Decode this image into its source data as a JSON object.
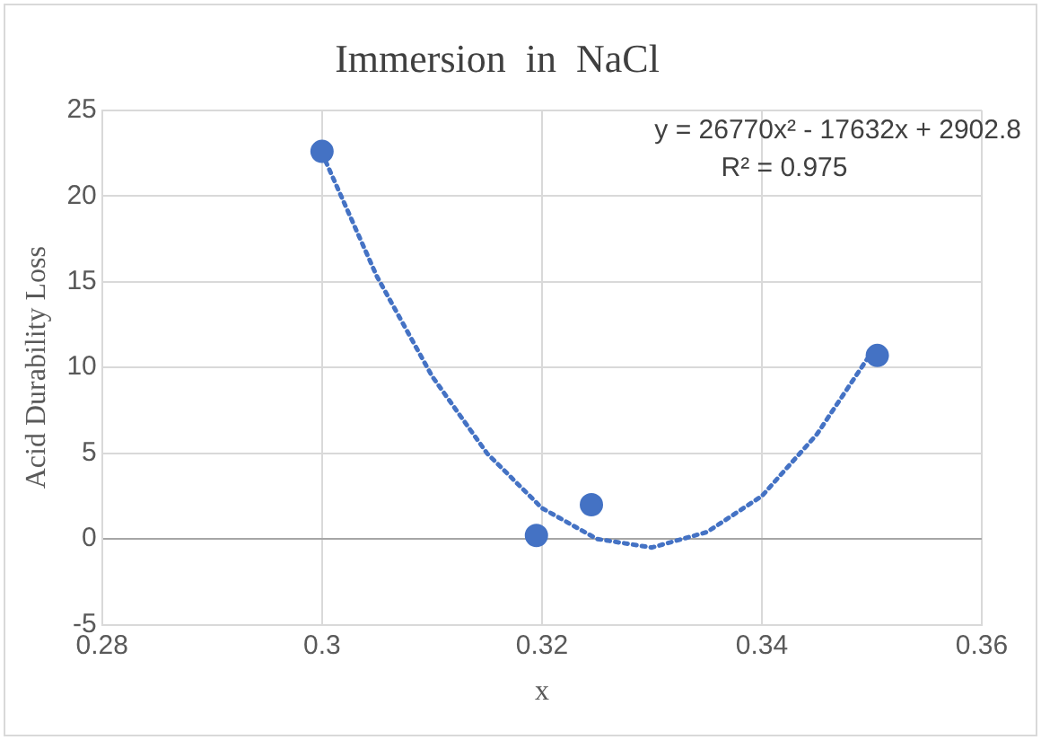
{
  "chart_data": {
    "type": "scatter",
    "title": "Immersion  in  NaCl",
    "xlabel": "x",
    "ylabel": "Acid Durability Loss",
    "annotations": [
      "y = 26770x² - 17632x + 2902.8",
      "R² = 0.975"
    ],
    "xlim": [
      0.28,
      0.36
    ],
    "xticks": [
      0.28,
      {
        "value": 0.3,
        "label": "0.3"
      },
      0.32,
      0.34,
      0.36
    ],
    "ylim": [
      -5,
      25
    ],
    "yticks": [
      -5,
      0,
      5,
      10,
      15,
      20,
      25
    ],
    "grid": true,
    "legend": false,
    "series": [
      {
        "type": "scatter",
        "color": "#4472c4",
        "marker": "circle",
        "x": [
          0.3,
          0.3195,
          0.3245,
          0.3505
        ],
        "values": [
          22.6,
          0.2,
          2.0,
          10.7
        ]
      },
      {
        "type": "line",
        "color": "#4472c4",
        "marker": "none",
        "line_style": "dotted",
        "x": [
          0.3,
          0.305,
          0.31,
          0.315,
          0.32,
          0.325,
          0.33,
          0.335,
          0.34,
          0.345,
          0.35
        ],
        "values": [
          22.5,
          15.3,
          9.5,
          5.0,
          1.8,
          0.0,
          -0.5,
          0.4,
          2.5,
          6.1,
          10.9
        ]
      }
    ]
  }
}
